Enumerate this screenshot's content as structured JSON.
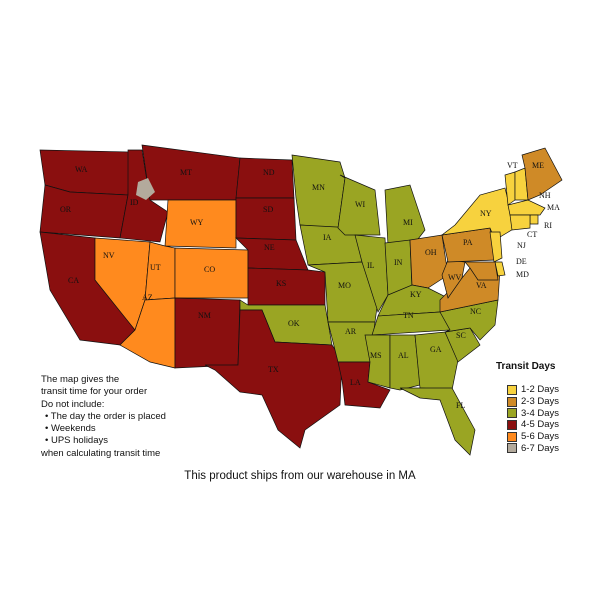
{
  "legend": {
    "title": "Transit Days",
    "items": [
      {
        "label": "1-2 Days",
        "color": "#f7d23e"
      },
      {
        "label": "2-3 Days",
        "color": "#cf8a27"
      },
      {
        "label": "3-4 Days",
        "color": "#9aa523"
      },
      {
        "label": "4-5 Days",
        "color": "#8a0f0f"
      },
      {
        "label": "5-6 Days",
        "color": "#ff8a1e"
      },
      {
        "label": "6-7 Days",
        "color": "#b3aa9c"
      }
    ]
  },
  "notes": {
    "line1": "The map gives the",
    "line2": "transit time for your order",
    "line3": "Do not include:",
    "bullets": [
      "• The day the order is placed",
      "• Weekends",
      "• UPS holidays"
    ],
    "line4": "when calculating transit time"
  },
  "caption": "This product ships from our warehouse in MA",
  "states": [
    {
      "code": "WA",
      "days": "4-5 Days"
    },
    {
      "code": "OR",
      "days": "4-5 Days"
    },
    {
      "code": "CA",
      "days": "4-5 Days"
    },
    {
      "code": "NV",
      "days": "5-6 Days"
    },
    {
      "code": "ID",
      "days": "4-5 Days"
    },
    {
      "code": "MT",
      "days": "4-5 Days"
    },
    {
      "code": "WY",
      "days": "5-6 Days"
    },
    {
      "code": "UT",
      "days": "5-6 Days"
    },
    {
      "code": "CO",
      "days": "5-6 Days"
    },
    {
      "code": "AZ",
      "days": "5-6 Days"
    },
    {
      "code": "NM",
      "days": "4-5 Days"
    },
    {
      "code": "ND",
      "days": "4-5 Days"
    },
    {
      "code": "SD",
      "days": "4-5 Days"
    },
    {
      "code": "NE",
      "days": "4-5 Days"
    },
    {
      "code": "KS",
      "days": "4-5 Days"
    },
    {
      "code": "OK",
      "days": "3-4 Days"
    },
    {
      "code": "TX",
      "days": "4-5 Days"
    },
    {
      "code": "MN",
      "days": "3-4 Days"
    },
    {
      "code": "IA",
      "days": "3-4 Days"
    },
    {
      "code": "MO",
      "days": "3-4 Days"
    },
    {
      "code": "AR",
      "days": "3-4 Days"
    },
    {
      "code": "LA",
      "days": "4-5 Days"
    },
    {
      "code": "WI",
      "days": "3-4 Days"
    },
    {
      "code": "IL",
      "days": "3-4 Days"
    },
    {
      "code": "MI",
      "days": "3-4 Days"
    },
    {
      "code": "IN",
      "days": "3-4 Days"
    },
    {
      "code": "OH",
      "days": "2-3 Days"
    },
    {
      "code": "KY",
      "days": "3-4 Days"
    },
    {
      "code": "TN",
      "days": "3-4 Days"
    },
    {
      "code": "MS",
      "days": "3-4 Days"
    },
    {
      "code": "AL",
      "days": "3-4 Days"
    },
    {
      "code": "GA",
      "days": "3-4 Days"
    },
    {
      "code": "FL",
      "days": "3-4 Days"
    },
    {
      "code": "SC",
      "days": "3-4 Days"
    },
    {
      "code": "NC",
      "days": "3-4 Days"
    },
    {
      "code": "VA",
      "days": "2-3 Days"
    },
    {
      "code": "WV",
      "days": "2-3 Days"
    },
    {
      "code": "PA",
      "days": "2-3 Days"
    },
    {
      "code": "NY",
      "days": "1-2 Days"
    },
    {
      "code": "VT",
      "days": "1-2 Days"
    },
    {
      "code": "NH",
      "days": "1-2 Days"
    },
    {
      "code": "ME",
      "days": "2-3 Days"
    },
    {
      "code": "MA",
      "days": "1-2 Days"
    },
    {
      "code": "RI",
      "days": "1-2 Days"
    },
    {
      "code": "CT",
      "days": "1-2 Days"
    },
    {
      "code": "NJ",
      "days": "1-2 Days"
    },
    {
      "code": "DE",
      "days": "1-2 Days"
    },
    {
      "code": "MD",
      "days": "2-3 Days"
    }
  ]
}
